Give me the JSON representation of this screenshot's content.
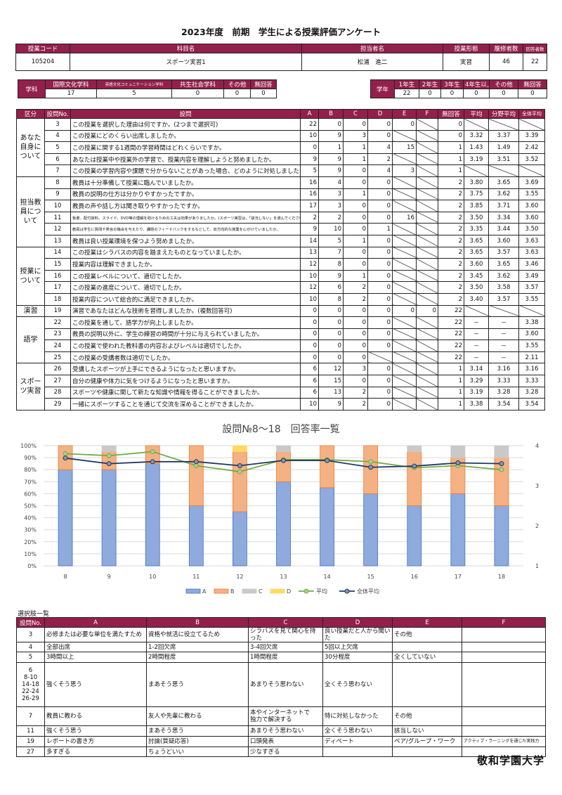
{
  "title": "2023年度　前期　学生による授業評価アンケート",
  "course": {
    "headers": [
      "授業コード",
      "科目名",
      "担当者名",
      "授業形態",
      "履修者数",
      "回答者数"
    ],
    "values": [
      "105204",
      "スポーツ実習1",
      "松浦　進二",
      "実習",
      "46",
      "22"
    ]
  },
  "department": {
    "label": "学科",
    "headers": [
      "国際文化学科",
      "英語文化コミュニケーション学科",
      "共生社会学科",
      "その他",
      "無回答"
    ],
    "values": [
      "17",
      "5",
      "0",
      "0",
      "0"
    ]
  },
  "grade": {
    "label": "学年",
    "headers": [
      "1年生",
      "2年生",
      "3年生",
      "4年生以上",
      "その他",
      "無回答"
    ],
    "values": [
      "22",
      "0",
      "0",
      "0",
      "0",
      "0"
    ]
  },
  "main": {
    "headers": [
      "区分",
      "設問No.",
      "設問",
      "A",
      "B",
      "C",
      "D",
      "E",
      "F",
      "無回答",
      "平均",
      "分野平均",
      "全体平均"
    ],
    "sections": [
      {
        "label": "あなた自身について",
        "rows": [
          {
            "no": "3",
            "q": "この授業を選択した理由は何ですか。(2つまで選択可)",
            "v": [
              22,
              0,
              0,
              0,
              0,
              null,
              0,
              null,
              null,
              null
            ]
          },
          {
            "no": "4",
            "q": "この授業にどのくらい出席しましたか。",
            "v": [
              10,
              9,
              3,
              0,
              null,
              null,
              0,
              "3.32",
              "3.37",
              "3.39"
            ]
          },
          {
            "no": "5",
            "q": "この授業に関する1週間の学習時間はどれくらいですか。",
            "v": [
              0,
              1,
              1,
              4,
              15,
              null,
              1,
              "1.43",
              "1.49",
              "2.42"
            ]
          },
          {
            "no": "6",
            "q": "あなたは授業中や授業外の学習で、授業内容を理解しようと努めましたか。",
            "v": [
              9,
              9,
              1,
              2,
              null,
              null,
              1,
              "3.19",
              "3.51",
              "3.52"
            ]
          },
          {
            "no": "7",
            "q": "この授業の学習内容や課題で分からないことがあった場合、どのように対処しましたか。",
            "v": [
              5,
              9,
              0,
              4,
              3,
              null,
              1,
              null,
              null,
              null
            ]
          }
        ]
      },
      {
        "label": "担当教員について",
        "rows": [
          {
            "no": "8",
            "q": "教員は十分準備して授業に臨んでいましたか。",
            "v": [
              16,
              4,
              0,
              0,
              null,
              null,
              2,
              "3.80",
              "3.65",
              "3.69"
            ]
          },
          {
            "no": "9",
            "q": "教員の説明の仕方は分かりやすかったですか。",
            "v": [
              16,
              3,
              1,
              0,
              null,
              null,
              2,
              "3.75",
              "3.62",
              "3.55"
            ]
          },
          {
            "no": "10",
            "q": "教員の声や話し方は聞き取りやすかったですか。",
            "v": [
              17,
              3,
              0,
              0,
              null,
              null,
              2,
              "3.85",
              "3.71",
              "3.60"
            ]
          },
          {
            "no": "11",
            "q": "板書、配付資料、スライド、DVD等の理解を助けるための工夫は効果がありましたか。(スポーツ実習は、「該当しない」を選んでください)",
            "tiny": true,
            "v": [
              2,
              2,
              0,
              0,
              16,
              null,
              2,
              "3.50",
              "3.34",
              "3.60"
            ]
          },
          {
            "no": "12",
            "q": "教員は学生に質問や発言の機会を与えたり、課題のフィードバックをするなどして、双方向的な授業を心がけていましたか。",
            "tiny": true,
            "v": [
              9,
              10,
              0,
              1,
              null,
              null,
              2,
              "3.35",
              "3.44",
              "3.50"
            ]
          },
          {
            "no": "13",
            "q": "教員は良い授業環境を保つよう努めましたか。",
            "v": [
              14,
              5,
              1,
              0,
              null,
              null,
              2,
              "3.65",
              "3.60",
              "3.63"
            ]
          }
        ]
      },
      {
        "label": "授業について",
        "rows": [
          {
            "no": "14",
            "q": "この授業はシラバスの内容を踏まえたものとなっていましたか。",
            "v": [
              13,
              7,
              0,
              0,
              null,
              null,
              2,
              "3.65",
              "3.57",
              "3.63"
            ]
          },
          {
            "no": "15",
            "q": "授業内容は理解できましたか。",
            "v": [
              12,
              8,
              0,
              0,
              null,
              null,
              2,
              "3.60",
              "3.65",
              "3.46"
            ]
          },
          {
            "no": "16",
            "q": "この授業レベルについて、適切でしたか。",
            "v": [
              10,
              9,
              1,
              0,
              null,
              null,
              2,
              "3.45",
              "3.62",
              "3.49"
            ]
          },
          {
            "no": "17",
            "q": "この授業の進度について、適切でしたか。",
            "v": [
              12,
              6,
              2,
              0,
              null,
              null,
              2,
              "3.50",
              "3.58",
              "3.57"
            ]
          },
          {
            "no": "18",
            "q": "授業内容について総合的に満足できましたか。",
            "v": [
              10,
              8,
              2,
              0,
              null,
              null,
              2,
              "3.40",
              "3.57",
              "3.55"
            ]
          }
        ]
      },
      {
        "label": "演習",
        "rows": [
          {
            "no": "19",
            "q": "演習であなたはどんな技術を習得しましたか。(複数回答可)",
            "v": [
              0,
              0,
              0,
              0,
              0,
              0,
              22,
              null,
              null,
              null
            ]
          }
        ]
      },
      {
        "label": "語学",
        "rows": [
          {
            "no": "22",
            "q": "この授業を通して、語学力が向上しましたか。",
            "v": [
              0,
              0,
              0,
              0,
              null,
              null,
              22,
              "－",
              "－",
              "3.38"
            ]
          },
          {
            "no": "23",
            "q": "教員の説明以外に、学生の練習の時間が十分に与えられていましたか。",
            "v": [
              0,
              0,
              0,
              0,
              null,
              null,
              22,
              "－",
              "－",
              "3.60"
            ]
          },
          {
            "no": "24",
            "q": "この授業で使われた教科書の内容およびレベルは適切でしたか。",
            "v": [
              0,
              0,
              0,
              0,
              null,
              null,
              22,
              "－",
              "－",
              "3.55"
            ]
          },
          {
            "no": "25",
            "q": "この授業の受講者数は適切でしたか。",
            "v": [
              0,
              0,
              0,
              null,
              null,
              null,
              22,
              "－",
              "－",
              "2.11"
            ]
          }
        ]
      },
      {
        "label": "スポーツ実習",
        "rows": [
          {
            "no": "26",
            "q": "受講したスポーツが上手にできるようになったと思いますか。",
            "v": [
              6,
              12,
              3,
              0,
              null,
              null,
              1,
              "3.14",
              "3.16",
              "3.16"
            ]
          },
          {
            "no": "27",
            "q": "自分の健康や体力に気をつけるようになったと思いますか。",
            "v": [
              6,
              15,
              0,
              0,
              null,
              null,
              1,
              "3.29",
              "3.33",
              "3.33"
            ]
          },
          {
            "no": "28",
            "q": "スポーツや健康に関して新たな知識や情報を得ることができましたか。",
            "v": [
              6,
              13,
              2,
              0,
              null,
              null,
              1,
              "3.19",
              "3.28",
              "3.28"
            ]
          },
          {
            "no": "29",
            "q": "一緒にスポーツすることを通じて交流を深めることができましたか。",
            "v": [
              10,
              9,
              2,
              0,
              null,
              null,
              1,
              "3.38",
              "3.54",
              "3.54"
            ]
          }
        ]
      }
    ]
  },
  "chart_data": {
    "type": "bar",
    "stacked": true,
    "title": "設問№8～18　回答率一覧",
    "categories": [
      "8",
      "9",
      "10",
      "11",
      "12",
      "13",
      "14",
      "15",
      "16",
      "17",
      "18"
    ],
    "ylim": [
      0,
      100
    ],
    "yticks": [
      "0%",
      "10%",
      "20%",
      "30%",
      "40%",
      "50%",
      "60%",
      "70%",
      "80%",
      "90%",
      "100%"
    ],
    "y2lim": [
      1,
      4
    ],
    "y2ticks": [
      "1",
      "2",
      "3",
      "4"
    ],
    "grid": true,
    "legend": "bottom",
    "series": [
      {
        "name": "A",
        "color": "#8faadc",
        "values": [
          80,
          80,
          85,
          50,
          45,
          70,
          65,
          60,
          50,
          60,
          50
        ]
      },
      {
        "name": "B",
        "color": "#f4b183",
        "values": [
          20,
          15,
          15,
          50,
          50,
          25,
          35,
          40,
          45,
          30,
          40
        ]
      },
      {
        "name": "C",
        "color": "#c9c9c9",
        "values": [
          0,
          5,
          0,
          0,
          0,
          5,
          0,
          0,
          5,
          10,
          10
        ]
      },
      {
        "name": "D",
        "color": "#ffd966",
        "values": [
          0,
          0,
          0,
          0,
          5,
          0,
          0,
          0,
          0,
          0,
          0
        ]
      }
    ],
    "lines": [
      {
        "name": "平均",
        "color": "#70ad47",
        "values": [
          3.8,
          3.75,
          3.85,
          3.5,
          3.35,
          3.65,
          3.65,
          3.6,
          3.45,
          3.5,
          3.4
        ]
      },
      {
        "name": "全体平均",
        "color": "#203864",
        "values": [
          3.69,
          3.55,
          3.6,
          3.6,
          3.5,
          3.63,
          3.63,
          3.46,
          3.49,
          3.57,
          3.55
        ]
      }
    ]
  },
  "choices": {
    "title": "選択肢一覧",
    "headers": [
      "設問No.",
      "A",
      "B",
      "C",
      "D",
      "E",
      "F"
    ],
    "rows": [
      [
        "3",
        "必修または必要な単位を満たすため",
        "資格や就活に役立てるため",
        "シラバスを見て関心を持った",
        "良い授業だと人から聞いた",
        "その他",
        ""
      ],
      [
        "4",
        "全部出席",
        "1-2回欠席",
        "3-4回欠席",
        "5回以上欠席",
        "",
        ""
      ],
      [
        "5",
        "3時間以上",
        "2時間程度",
        "1時間程度",
        "30分程度",
        "全くしていない",
        ""
      ],
      [
        "6\n8-10\n14-18\n22-24\n26-29",
        "強くそう思う",
        "まあそう思う",
        "あまりそう思わない",
        "全くそう思わない",
        "",
        ""
      ],
      [
        "7",
        "教員に教わる",
        "友人や先輩に教わる",
        "本やインターネットで\n独力で解決する",
        "特に対処しなかった",
        "その他",
        ""
      ],
      [
        "11",
        "強くそう思う",
        "まあそう思う",
        "あまりそう思わない",
        "全くそう思わない",
        "該当しない",
        ""
      ],
      [
        "19",
        "レポートの書き方",
        "討論(質疑応答)",
        "口頭発表",
        "ディベート",
        "ペア/グループ・ワーク",
        "アクティブ・ラーニングを通じた実践力"
      ],
      [
        "27",
        "多すぎる",
        "ちょうどいい",
        "少なすぎる",
        "",
        "",
        ""
      ]
    ]
  },
  "logo": "敬和学園大学",
  "colors": {
    "header": "#93204a"
  }
}
